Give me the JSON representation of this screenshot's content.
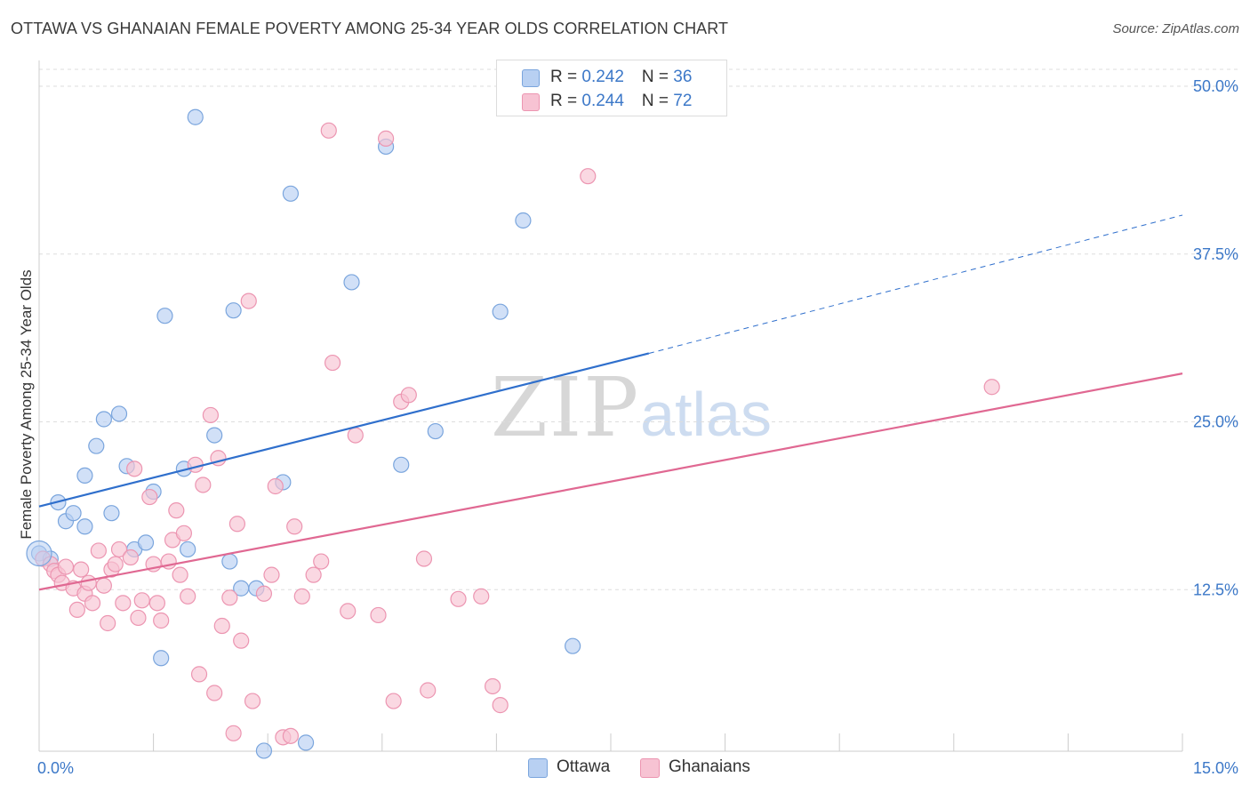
{
  "header": {
    "title": "OTTAWA VS GHANAIAN FEMALE POVERTY AMONG 25-34 YEAR OLDS CORRELATION CHART",
    "source": "Source: ZipAtlas.com"
  },
  "watermark": {
    "zip": "ZIP",
    "atlas": "atlas"
  },
  "legend": {
    "ottawa": {
      "r_label": "R = ",
      "r_value": "0.242",
      "n_label": "N = ",
      "n_value": "36"
    },
    "ghanaians": {
      "r_label": "R = ",
      "r_value": "0.244",
      "n_label": "N = ",
      "n_value": "72"
    }
  },
  "colors": {
    "ottawa_fill": "#b8d0f2",
    "ottawa_stroke": "#7aa5dd",
    "ottawa_line": "#2f6fcc",
    "ghanaians_fill": "#f7c3d3",
    "ghanaians_stroke": "#ec95b1",
    "ghanaians_line": "#e06892",
    "tick_label": "#3c78c8",
    "grid": "#dddddd"
  },
  "chart_data": {
    "type": "scatter",
    "title": "OTTAWA VS GHANAIAN FEMALE POVERTY AMONG 25-34 YEAR OLDS CORRELATION CHART",
    "xlabel": "",
    "ylabel": "Female Poverty Among 25-34 Year Olds",
    "xlim": [
      0,
      15
    ],
    "ylim": [
      0,
      50
    ],
    "x_tick_labels": [
      {
        "value": 0,
        "label": "0.0%"
      },
      {
        "value": 15,
        "label": "15.0%"
      }
    ],
    "y_tick_labels": [
      {
        "value": 12.5,
        "label": "12.5%"
      },
      {
        "value": 25,
        "label": "25.0%"
      },
      {
        "value": 37.5,
        "label": "37.5%"
      },
      {
        "value": 50,
        "label": "50.0%"
      }
    ],
    "grid": true,
    "legend_position": "top-center",
    "series": [
      {
        "name": "Ottawa",
        "color": "#7aa5dd",
        "points": [
          [
            0.0,
            15.2
          ],
          [
            0.15,
            14.8
          ],
          [
            0.25,
            19.0
          ],
          [
            0.35,
            17.6
          ],
          [
            0.45,
            18.2
          ],
          [
            0.6,
            17.2
          ],
          [
            0.6,
            21.0
          ],
          [
            0.75,
            23.2
          ],
          [
            0.85,
            25.2
          ],
          [
            0.95,
            18.2
          ],
          [
            1.05,
            25.6
          ],
          [
            1.15,
            21.7
          ],
          [
            1.25,
            15.5
          ],
          [
            1.4,
            16.0
          ],
          [
            1.5,
            19.8
          ],
          [
            1.6,
            7.4
          ],
          [
            1.65,
            32.9
          ],
          [
            1.9,
            21.5
          ],
          [
            1.95,
            15.5
          ],
          [
            2.05,
            47.7
          ],
          [
            2.3,
            24.0
          ],
          [
            2.5,
            14.6
          ],
          [
            2.55,
            33.3
          ],
          [
            2.65,
            12.6
          ],
          [
            2.85,
            12.6
          ],
          [
            2.95,
            0.5
          ],
          [
            3.3,
            42.0
          ],
          [
            3.2,
            20.5
          ],
          [
            3.5,
            1.1
          ],
          [
            4.1,
            35.4
          ],
          [
            4.55,
            45.5
          ],
          [
            4.75,
            21.8
          ],
          [
            5.2,
            24.3
          ],
          [
            6.05,
            33.2
          ],
          [
            6.35,
            40.0
          ],
          [
            7.0,
            8.3
          ]
        ]
      },
      {
        "name": "Ghanaians",
        "color": "#ec95b1",
        "points": [
          [
            0.05,
            14.8
          ],
          [
            0.15,
            14.4
          ],
          [
            0.2,
            13.9
          ],
          [
            0.25,
            13.6
          ],
          [
            0.3,
            13.0
          ],
          [
            0.35,
            14.2
          ],
          [
            0.45,
            12.6
          ],
          [
            0.5,
            11.0
          ],
          [
            0.55,
            14.0
          ],
          [
            0.6,
            12.2
          ],
          [
            0.65,
            13.0
          ],
          [
            0.7,
            11.5
          ],
          [
            0.78,
            15.4
          ],
          [
            0.85,
            12.8
          ],
          [
            0.9,
            10.0
          ],
          [
            0.95,
            14.0
          ],
          [
            1.0,
            14.4
          ],
          [
            1.05,
            15.5
          ],
          [
            1.1,
            11.5
          ],
          [
            1.2,
            14.9
          ],
          [
            1.25,
            21.5
          ],
          [
            1.3,
            10.4
          ],
          [
            1.35,
            11.7
          ],
          [
            1.45,
            19.4
          ],
          [
            1.5,
            14.4
          ],
          [
            1.55,
            11.5
          ],
          [
            1.6,
            10.2
          ],
          [
            1.7,
            14.6
          ],
          [
            1.75,
            16.2
          ],
          [
            1.8,
            18.4
          ],
          [
            1.85,
            13.6
          ],
          [
            1.9,
            16.7
          ],
          [
            1.95,
            12.0
          ],
          [
            2.05,
            21.8
          ],
          [
            2.1,
            6.2
          ],
          [
            2.15,
            20.3
          ],
          [
            2.25,
            25.5
          ],
          [
            2.3,
            4.8
          ],
          [
            2.35,
            22.3
          ],
          [
            2.4,
            9.8
          ],
          [
            2.5,
            11.9
          ],
          [
            2.55,
            1.8
          ],
          [
            2.6,
            17.4
          ],
          [
            2.65,
            8.7
          ],
          [
            2.75,
            34.0
          ],
          [
            2.8,
            4.2
          ],
          [
            2.95,
            12.2
          ],
          [
            3.05,
            13.6
          ],
          [
            3.1,
            20.2
          ],
          [
            3.2,
            1.5
          ],
          [
            3.3,
            1.6
          ],
          [
            3.35,
            17.2
          ],
          [
            3.45,
            12.0
          ],
          [
            3.6,
            13.6
          ],
          [
            3.7,
            14.6
          ],
          [
            3.8,
            46.7
          ],
          [
            3.85,
            29.4
          ],
          [
            4.05,
            10.9
          ],
          [
            4.15,
            24.0
          ],
          [
            4.45,
            10.6
          ],
          [
            4.55,
            46.1
          ],
          [
            4.65,
            4.2
          ],
          [
            4.75,
            26.5
          ],
          [
            4.85,
            27.0
          ],
          [
            5.05,
            14.8
          ],
          [
            5.1,
            5.0
          ],
          [
            5.5,
            11.8
          ],
          [
            5.8,
            12.0
          ],
          [
            5.95,
            5.3
          ],
          [
            6.05,
            3.9
          ],
          [
            7.2,
            43.3
          ],
          [
            12.5,
            27.6
          ]
        ]
      }
    ],
    "trendlines": [
      {
        "name": "Ottawa",
        "x": [
          0,
          8.0
        ],
        "y": [
          18.7,
          30.1
        ],
        "dashed_extension": {
          "x": [
            8.0,
            15.0
          ],
          "y": [
            30.1,
            40.4
          ]
        }
      },
      {
        "name": "Ghanaians",
        "x": [
          0,
          15.0
        ],
        "y": [
          12.5,
          28.6
        ]
      }
    ]
  }
}
